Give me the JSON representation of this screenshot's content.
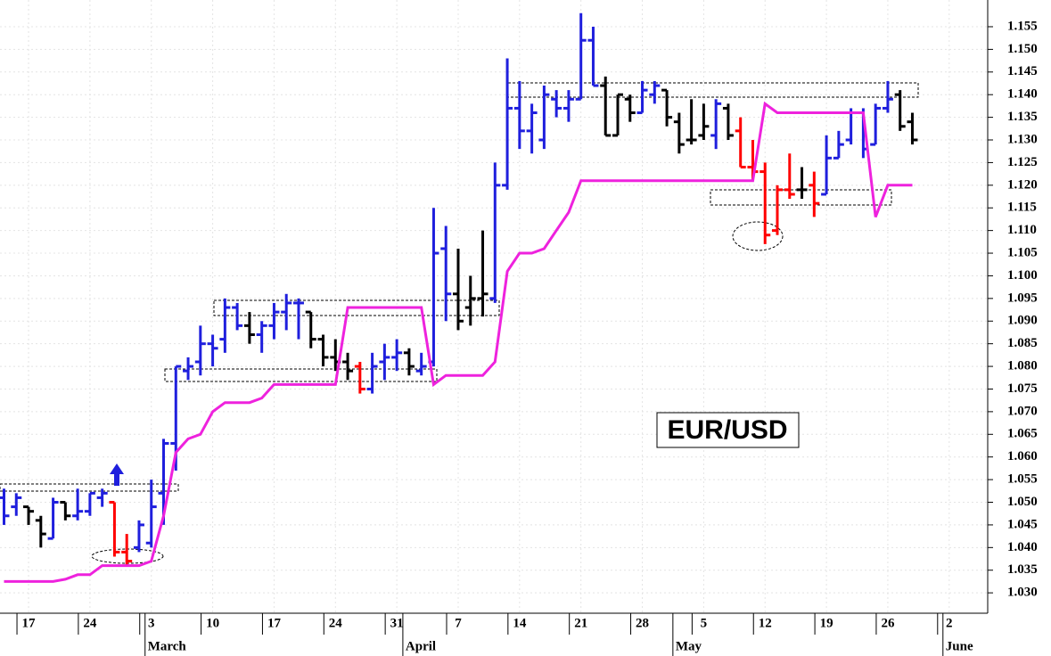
{
  "chart_data": {
    "type": "ohlc",
    "annotation": "EUR/USD",
    "grid": true,
    "categories": [
      null,
      null,
      "17",
      null,
      null,
      null,
      null,
      "24",
      null,
      null,
      null,
      null,
      "3",
      null,
      null,
      null,
      null,
      "10",
      null,
      null,
      null,
      null,
      "17",
      null,
      null,
      null,
      null,
      "24",
      null,
      null,
      null,
      null,
      "31",
      null,
      null,
      null,
      null,
      "7",
      null,
      null,
      null,
      null,
      "14",
      null,
      null,
      null,
      null,
      "21",
      null,
      null,
      null,
      null,
      "28",
      null,
      null,
      null,
      null,
      "5",
      null,
      null,
      null,
      null,
      "12",
      null,
      null,
      null,
      null,
      "19",
      null,
      null,
      null,
      null,
      "26",
      null,
      null,
      null,
      null,
      "2"
    ],
    "months": [
      null,
      null,
      null,
      null,
      null,
      null,
      null,
      null,
      null,
      null,
      null,
      null,
      "March",
      null,
      null,
      null,
      null,
      null,
      null,
      null,
      null,
      null,
      null,
      null,
      null,
      null,
      null,
      null,
      null,
      null,
      null,
      null,
      null,
      "April",
      null,
      null,
      null,
      null,
      null,
      null,
      null,
      null,
      null,
      null,
      null,
      null,
      null,
      null,
      null,
      null,
      null,
      null,
      null,
      null,
      null,
      "May",
      null,
      null,
      null,
      null,
      null,
      null,
      null,
      null,
      null,
      null,
      null,
      null,
      null,
      null,
      null,
      null,
      null,
      null,
      null,
      null,
      null,
      "June"
    ],
    "open": [
      1.051,
      1.049,
      1.049,
      1.046,
      1.042,
      1.05,
      1.047,
      1.048,
      1.051,
      1.05,
      1.039,
      1.04,
      1.041,
      1.052,
      1.063,
      1.079,
      1.081,
      1.085,
      1.086,
      1.093,
      1.089,
      1.087,
      1.089,
      1.092,
      1.094,
      1.092,
      1.086,
      1.082,
      1.081,
      1.08,
      1.075,
      1.081,
      1.082,
      1.083,
      1.079,
      1.081,
      1.106,
      1.096,
      1.093,
      1.095,
      1.095,
      1.12,
      1.137,
      1.132,
      1.13,
      1.139,
      1.137,
      1.139,
      1.152,
      1.142,
      1.131,
      1.139,
      1.136,
      1.14,
      1.141,
      1.134,
      1.13,
      1.131,
      1.131,
      1.137,
      1.132,
      1.124,
      1.123,
      1.11,
      1.119,
      1.119,
      1.12,
      1.118,
      1.126,
      1.13,
      1.136,
      1.129,
      1.137,
      1.14,
      1.134,
      null,
      null,
      null
    ],
    "high": [
      1.053,
      1.052,
      1.049,
      1.047,
      1.051,
      1.05,
      1.053,
      1.052,
      1.053,
      1.05,
      1.043,
      1.046,
      1.055,
      1.064,
      1.08,
      1.082,
      1.089,
      1.087,
      1.095,
      1.094,
      1.092,
      1.09,
      1.094,
      1.096,
      1.095,
      1.092,
      1.087,
      1.086,
      1.083,
      1.081,
      1.083,
      1.085,
      1.086,
      1.084,
      1.083,
      1.115,
      1.111,
      1.106,
      1.1,
      1.11,
      1.125,
      1.148,
      1.143,
      1.138,
      1.142,
      1.141,
      1.141,
      1.158,
      1.155,
      1.144,
      1.14,
      1.14,
      1.143,
      1.143,
      1.141,
      1.136,
      1.139,
      1.138,
      1.139,
      1.138,
      1.135,
      1.13,
      1.125,
      1.12,
      1.127,
      1.124,
      1.123,
      1.131,
      1.132,
      1.137,
      1.137,
      1.138,
      1.143,
      1.141,
      1.136,
      null,
      null,
      null
    ],
    "low": [
      1.045,
      1.047,
      1.045,
      1.04,
      1.042,
      1.046,
      1.046,
      1.047,
      1.049,
      1.038,
      1.036,
      1.039,
      1.04,
      1.045,
      1.057,
      1.077,
      1.078,
      1.08,
      1.083,
      1.088,
      1.085,
      1.083,
      1.086,
      1.088,
      1.086,
      1.084,
      1.08,
      1.079,
      1.077,
      1.074,
      1.074,
      1.077,
      1.079,
      1.078,
      1.078,
      1.08,
      1.09,
      1.088,
      1.089,
      1.091,
      1.094,
      1.119,
      1.128,
      1.127,
      1.128,
      1.135,
      1.134,
      1.139,
      1.142,
      1.131,
      1.131,
      1.134,
      1.136,
      1.138,
      1.133,
      1.127,
      1.129,
      1.13,
      1.128,
      1.13,
      1.124,
      1.121,
      1.107,
      1.109,
      1.117,
      1.117,
      1.113,
      1.118,
      1.126,
      1.129,
      1.126,
      1.129,
      1.136,
      1.132,
      1.129,
      null,
      null,
      null
    ],
    "close": [
      1.047,
      1.051,
      1.048,
      1.043,
      1.05,
      1.047,
      1.048,
      1.052,
      1.052,
      1.039,
      1.037,
      1.045,
      1.049,
      1.063,
      1.08,
      1.08,
      1.085,
      1.084,
      1.093,
      1.089,
      1.087,
      1.089,
      1.092,
      1.094,
      1.094,
      1.086,
      1.082,
      1.081,
      1.079,
      1.075,
      1.08,
      1.082,
      1.083,
      1.08,
      1.08,
      1.105,
      1.096,
      1.09,
      1.095,
      1.096,
      1.12,
      1.137,
      1.132,
      1.136,
      1.14,
      1.137,
      1.139,
      1.152,
      1.142,
      1.131,
      1.14,
      1.136,
      1.141,
      1.142,
      1.135,
      1.129,
      1.13,
      1.133,
      1.138,
      1.131,
      1.124,
      1.123,
      1.109,
      1.119,
      1.118,
      1.119,
      1.116,
      1.126,
      1.129,
      1.136,
      1.128,
      1.137,
      1.139,
      1.133,
      1.13,
      null,
      null,
      null
    ],
    "colors": [
      "#1f1fdd",
      "#1f1fdd",
      "#000000",
      "#000000",
      "#1f1fdd",
      "#000000",
      "#1f1fdd",
      "#1f1fdd",
      "#1f1fdd",
      "#ff0000",
      "#ff0000",
      "#1f1fdd",
      "#1f1fdd",
      "#1f1fdd",
      "#1f1fdd",
      "#1f1fdd",
      "#1f1fdd",
      "#1f1fdd",
      "#1f1fdd",
      "#1f1fdd",
      "#000000",
      "#1f1fdd",
      "#1f1fdd",
      "#1f1fdd",
      "#1f1fdd",
      "#000000",
      "#000000",
      "#000000",
      "#000000",
      "#ff0000",
      "#1f1fdd",
      "#1f1fdd",
      "#1f1fdd",
      "#000000",
      "#1f1fdd",
      "#1f1fdd",
      "#1f1fdd",
      "#000000",
      "#000000",
      "#000000",
      "#1f1fdd",
      "#1f1fdd",
      "#1f1fdd",
      "#1f1fdd",
      "#1f1fdd",
      "#1f1fdd",
      "#1f1fdd",
      "#1f1fdd",
      "#1f1fdd",
      "#000000",
      "#000000",
      "#000000",
      "#1f1fdd",
      "#1f1fdd",
      "#000000",
      "#000000",
      "#000000",
      "#000000",
      "#1f1fdd",
      "#000000",
      "#ff0000",
      "#ff0000",
      "#ff0000",
      "#ff0000",
      "#ff0000",
      "#000000",
      "#ff0000",
      "#1f1fdd",
      "#1f1fdd",
      "#1f1fdd",
      "#1f1fdd",
      "#1f1fdd",
      "#1f1fdd",
      "#000000",
      "#000000",
      null,
      null,
      null
    ],
    "stop_line": {
      "color": "#ee22dd",
      "values": [
        1.0325,
        1.0325,
        1.0325,
        1.0325,
        1.0325,
        1.033,
        1.034,
        1.034,
        1.036,
        1.036,
        1.036,
        1.036,
        1.037,
        1.047,
        1.061,
        1.064,
        1.065,
        1.07,
        1.072,
        1.072,
        1.072,
        1.073,
        1.076,
        1.076,
        1.076,
        1.076,
        1.076,
        1.076,
        1.093,
        1.093,
        1.093,
        1.093,
        1.093,
        1.093,
        1.093,
        1.076,
        1.078,
        1.078,
        1.078,
        1.078,
        1.081,
        1.101,
        1.105,
        1.105,
        1.106,
        1.11,
        1.114,
        1.121,
        1.121,
        1.121,
        1.121,
        1.121,
        1.121,
        1.121,
        1.121,
        1.121,
        1.121,
        1.121,
        1.121,
        1.121,
        1.121,
        1.121,
        1.138,
        1.136,
        1.136,
        1.136,
        1.136,
        1.136,
        1.136,
        1.136,
        1.136,
        1.113,
        1.12,
        1.12,
        1.12,
        null,
        null,
        null
      ]
    },
    "ylim": [
      1.0255,
      1.1609
    ],
    "yticks": [
      {
        "value": 1.03,
        "label": "1.030"
      },
      {
        "value": 1.035,
        "label": "1.035"
      },
      {
        "value": 1.04,
        "label": "1.040"
      },
      {
        "value": 1.045,
        "label": "1.045"
      },
      {
        "value": 1.05,
        "label": "1.050"
      },
      {
        "value": 1.055,
        "label": "1.055"
      },
      {
        "value": 1.06,
        "label": "1.060"
      },
      {
        "value": 1.065,
        "label": "1.065"
      },
      {
        "value": 1.07,
        "label": "1.070"
      },
      {
        "value": 1.075,
        "label": "1.075"
      },
      {
        "value": 1.08,
        "label": "1.080"
      },
      {
        "value": 1.085,
        "label": "1.085"
      },
      {
        "value": 1.09,
        "label": "1.090"
      },
      {
        "value": 1.095,
        "label": "1.095"
      },
      {
        "value": 1.1,
        "label": "1.100"
      },
      {
        "value": 1.105,
        "label": "1.105"
      },
      {
        "value": 1.11,
        "label": "1.110"
      },
      {
        "value": 1.115,
        "label": "1.115"
      },
      {
        "value": 1.12,
        "label": "1.120"
      },
      {
        "value": 1.125,
        "label": "1.125"
      },
      {
        "value": 1.13,
        "label": "1.130"
      },
      {
        "value": 1.135,
        "label": "1.135"
      },
      {
        "value": 1.14,
        "label": "1.140"
      },
      {
        "value": 1.145,
        "label": "1.145"
      },
      {
        "value": 1.15,
        "label": "1.150"
      },
      {
        "value": 1.155,
        "label": "1.155"
      }
    ]
  }
}
